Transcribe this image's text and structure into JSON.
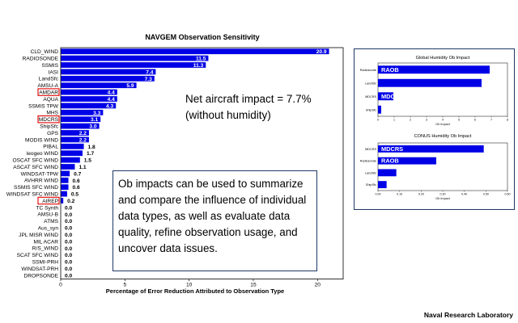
{
  "chart_data": [
    {
      "type": "bar",
      "orientation": "horizontal",
      "title": "NAVGEM Observation Sensitivity",
      "xlabel": "Percentage of Error Reduction Attributed to Observation Type",
      "ylabel": "",
      "xlim": [
        0,
        22
      ],
      "xticks": [
        0,
        5,
        10,
        15,
        20
      ],
      "categories": [
        "CLD_WIND",
        "RADIOSONDE",
        "SSMIS",
        "IASI",
        "LandSfc",
        "AMSU-A",
        "AMDAR",
        "AQUA",
        "SSMIS TPW",
        "MHS",
        "MDCRS",
        "ShipSfc",
        "GPS",
        "MODIS WIND",
        "PIBAL",
        "leogeo WIND",
        "OSCAT SFC WIND",
        "ASCAT SFC WIND",
        "WINDSAT-TPW",
        "AVHRR WIND",
        "SSMIS SFC WIND",
        "WINDSAT SFC WIND",
        "AIREP",
        "TC Synth",
        "AMSU-B",
        "ATMS",
        "Aus_syn",
        "JPL MISR WIND",
        "MIL ACAR",
        "R/S_WIND",
        "SCAT SFC WIND",
        "SSMI-PRH",
        "WINDSAT-PRH",
        "DROPSONDE"
      ],
      "values": [
        20.9,
        11.5,
        11.3,
        7.4,
        7.3,
        5.9,
        4.4,
        4.4,
        4.3,
        3.3,
        3.1,
        3.0,
        2.2,
        2.2,
        1.8,
        1.7,
        1.5,
        1.1,
        0.7,
        0.6,
        0.6,
        0.5,
        0.2,
        0.0,
        0.0,
        0.0,
        0.0,
        0.0,
        0.0,
        0.0,
        0.0,
        0.0,
        0.0,
        0.0
      ],
      "value_labels": [
        "20.9",
        "11.5",
        "11.3",
        "7.4",
        "7.3",
        "5.9",
        "4.4",
        "4.4",
        "4.3",
        "3.3",
        "3.1",
        "3.0",
        "2.2",
        "2.2",
        "1.8",
        "1.7",
        "1.5",
        "1.1",
        "0.7",
        "0.6",
        "0.6",
        "0.5",
        "0.2",
        "0.0",
        "0.0",
        "0.0",
        "0.0",
        "0.0",
        "0.0",
        "0.0",
        "0.0",
        "0.0",
        "0.0",
        "0.0"
      ],
      "highlighted": [
        "AMDAR",
        "MDCRS",
        "AIREP"
      ],
      "bar_color": "#0000e6",
      "highlight_color": "#e00000"
    },
    {
      "type": "bar",
      "orientation": "horizontal",
      "title": "Global  Humidity  Ob  Impact",
      "xlabel": "Ob  Impact",
      "categories": [
        "Radiosonde",
        "LandSfc",
        "MDCRS",
        "ShipSfc"
      ],
      "values": [
        6.9,
        6.4,
        0.95,
        0.2
      ],
      "inner_labels": [
        "RAOB",
        "",
        "MDCRS",
        ""
      ],
      "xlim": [
        0,
        8
      ],
      "xticks": [
        "0",
        "1",
        "2",
        "3",
        "4",
        "5",
        "6",
        "7",
        "8"
      ]
    },
    {
      "type": "bar",
      "orientation": "horizontal",
      "title": "CONUS  Humidity  Ob  Impact",
      "xlabel": "Ob  Impact",
      "categories": [
        "MDCRS",
        "Radiosonde",
        "LandSfc",
        "ShipSfc"
      ],
      "values": [
        0.49,
        0.27,
        0.085,
        0.04
      ],
      "inner_labels": [
        "MDCRS",
        "RAOB",
        "",
        ""
      ],
      "xlim": [
        0,
        0.6
      ],
      "xticks": [
        "0.00",
        "0.10",
        "0.20",
        "0.30",
        "0.40",
        "0.50",
        "0.60"
      ]
    }
  ],
  "annotations": {
    "net_impact_line1": "Net aircraft impact = 7.7%",
    "net_impact_line2": "(without humidity)",
    "callout_text": "Ob impacts can be used to summarize and compare the influence of individual data types, as well as evaluate data quality, refine observation usage, and uncover data issues."
  },
  "footer": "Naval Research Laboratory"
}
